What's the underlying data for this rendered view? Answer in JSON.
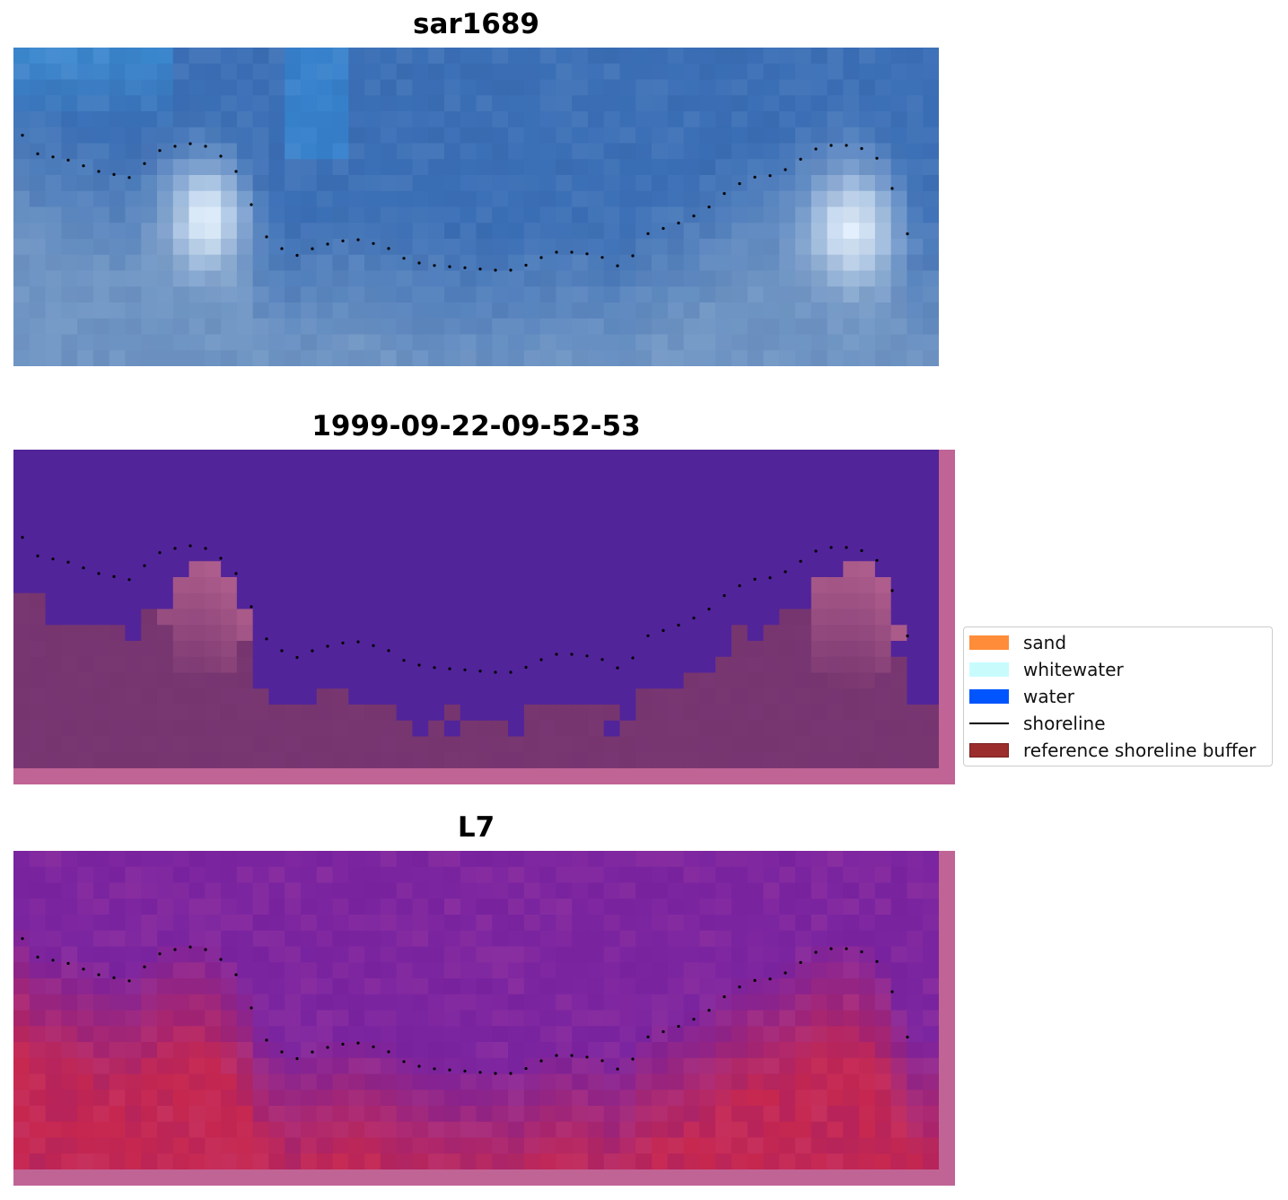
{
  "panels": [
    {
      "title": "sar1689",
      "kind": "rgb"
    },
    {
      "title": "1999-09-22-09-52-53",
      "kind": "classified"
    },
    {
      "title": "L7",
      "kind": "index"
    }
  ],
  "legend": {
    "items": [
      {
        "label": "sand",
        "color": "#ff8c38",
        "type": "patch"
      },
      {
        "label": "whitewater",
        "color": "#c8fcfc",
        "type": "patch"
      },
      {
        "label": "water",
        "color": "#0055ff",
        "type": "patch"
      },
      {
        "label": "shoreline",
        "color": "#000000",
        "type": "line"
      },
      {
        "label": "reference shoreline buffer",
        "color": "#9b2d2d",
        "type": "patch"
      }
    ]
  },
  "colors": {
    "rgb_water": "#3b6fb6",
    "rgb_shallow": "#6f95c4",
    "rgb_whitewater": "#e8f4ff",
    "class_water": "#52249a",
    "class_land": "#76356f",
    "class_whitewater": "#b4628f",
    "buffer_pink": "#c06495",
    "index_water": "#7c25a0",
    "index_land": "#c6274f",
    "shoreline": "#000000"
  }
}
